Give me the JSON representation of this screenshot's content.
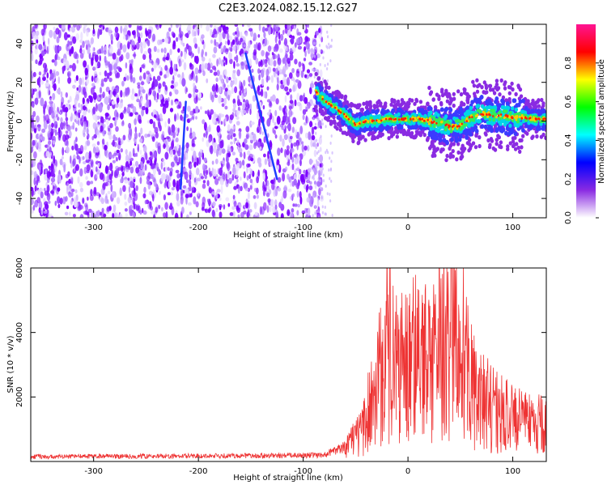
{
  "title": "C2E3.2024.082.15.12.G27",
  "chart_data": [
    {
      "type": "heatmap",
      "name": "spectrogram",
      "xlabel": "Height of straight line (km)",
      "ylabel": "Frequency (Hz)",
      "xlim": [
        -360,
        132
      ],
      "ylim": [
        -50,
        50
      ],
      "xticks": [
        -300,
        -200,
        -100,
        0,
        100
      ],
      "yticks": [
        -40,
        -20,
        0,
        20,
        40
      ],
      "colorbar": {
        "label": "Normalized spectral amplitude",
        "range": [
          0,
          1
        ],
        "ticks": [
          "0.0",
          "0.2",
          "0.4",
          "0.6",
          "0.8"
        ],
        "colors": [
          "#ffffff",
          "#8a2be2",
          "#0000ff",
          "#00ffff",
          "#00ff00",
          "#ffff00",
          "#ff0000",
          "#ff1493"
        ]
      },
      "noise_region_x": [
        -360,
        -88
      ],
      "signal_trace": {
        "x": [
          -88,
          -80,
          -70,
          -60,
          -50,
          -40,
          -30,
          -20,
          -10,
          0,
          10,
          20,
          30,
          40,
          50,
          60,
          70,
          80,
          90,
          100,
          110,
          120,
          132
        ],
        "y": [
          15,
          11,
          7,
          3,
          -2,
          0,
          0,
          1,
          1,
          1,
          1,
          0,
          -1,
          -3,
          -2,
          2,
          4,
          3,
          3,
          2,
          2,
          1,
          1
        ]
      },
      "streaks": [
        {
          "x": [
            -217,
            -212
          ],
          "y": [
            -35,
            10
          ]
        },
        {
          "x": [
            -155,
            -125
          ],
          "y": [
            35,
            -30
          ]
        }
      ]
    },
    {
      "type": "line",
      "name": "snr",
      "xlabel": "Height of straight line (km)",
      "ylabel": "SNR (10 * v/v)",
      "xlim": [
        -360,
        132
      ],
      "ylim": [
        0,
        6000
      ],
      "xticks": [
        -300,
        -200,
        -100,
        0,
        100
      ],
      "yticks": [
        2000,
        4000,
        6000
      ],
      "color": "#ee3333",
      "envelope": {
        "x": [
          -360,
          -120,
          -80,
          -60,
          -45,
          -30,
          -20,
          -10,
          0,
          10,
          20,
          30,
          40,
          50,
          60,
          70,
          80,
          90,
          100,
          110,
          120,
          132
        ],
        "y": [
          150,
          180,
          200,
          450,
          900,
          2200,
          3600,
          2800,
          3000,
          3200,
          3300,
          3500,
          3900,
          3700,
          2400,
          1900,
          1700,
          1500,
          1300,
          1200,
          1150,
          1100
        ]
      },
      "peak": {
        "x": -20,
        "y": 6000
      }
    }
  ]
}
